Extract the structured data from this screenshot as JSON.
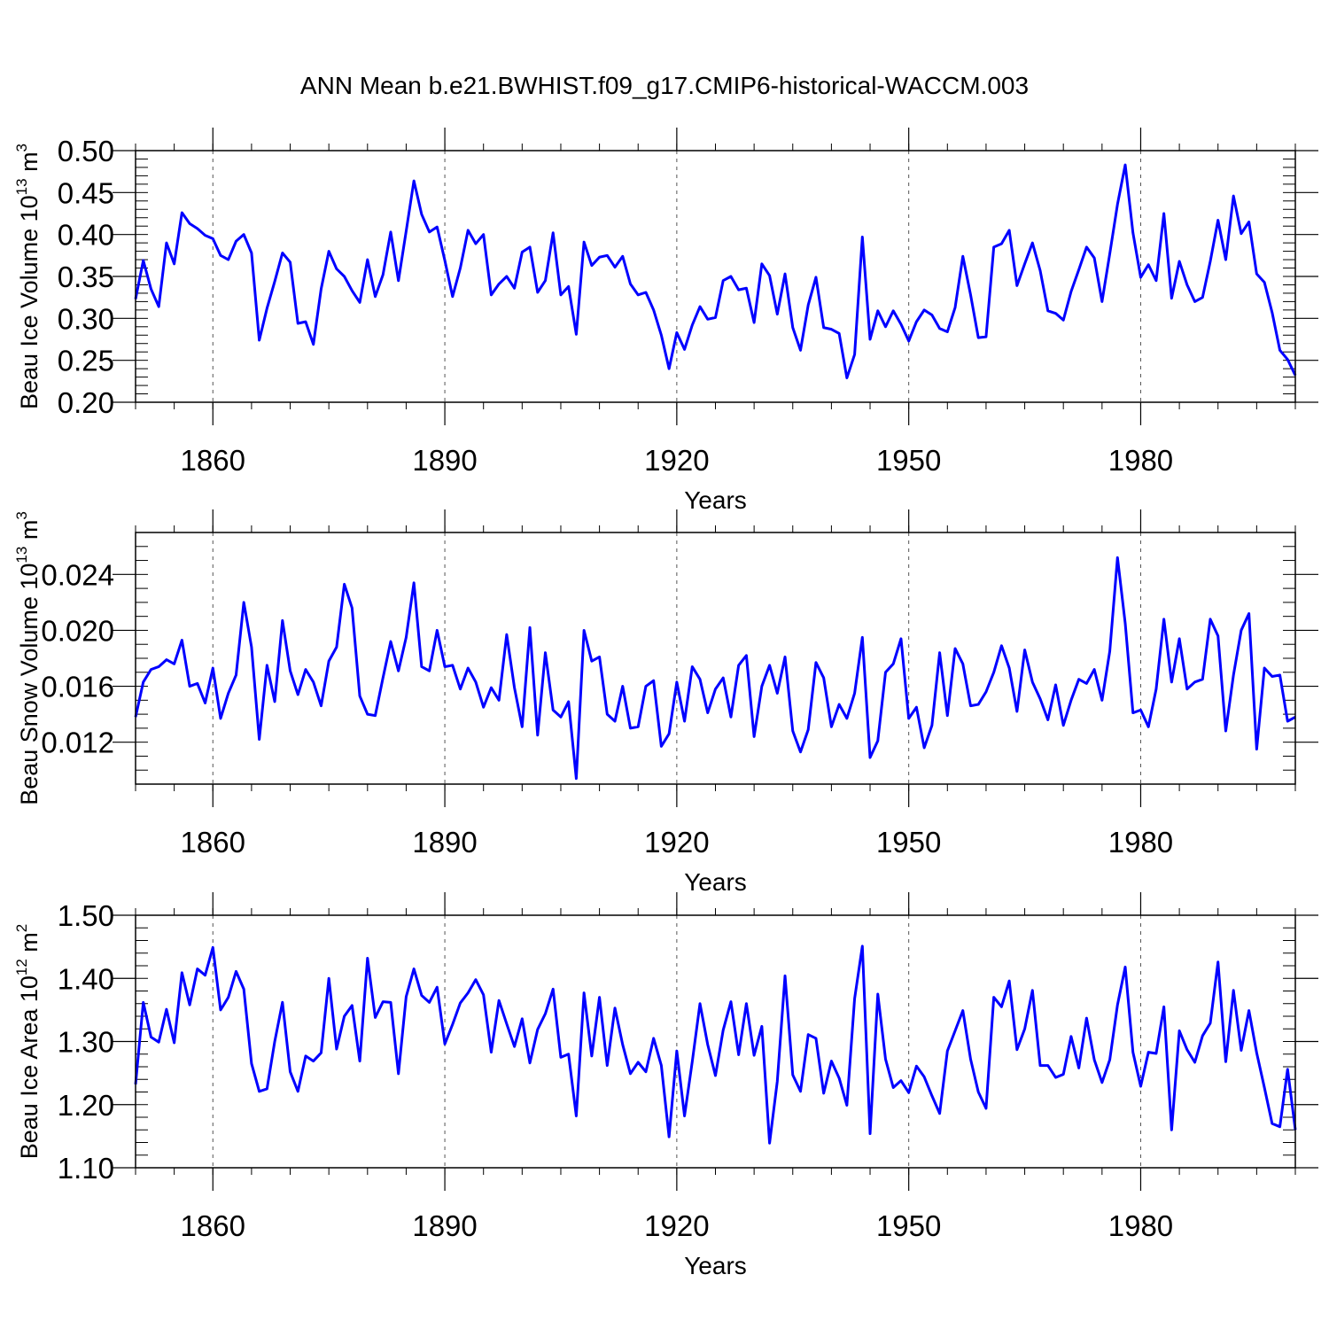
{
  "title": "ANN Mean b.e21.BWHIST.f09_g17.CMIP6-historical-WACCM.003",
  "colors": {
    "line": "#0000ff",
    "axis": "#000000",
    "grid": "#555555"
  },
  "chart_data": [
    {
      "type": "line",
      "name": "ice-volume",
      "ylabel_main": "Beau Ice Volume 10",
      "ylabel_exp": "13",
      "ylabel_unit": " m",
      "ylabel_unit_exp": "3",
      "xlabel": "Years",
      "xlim": [
        1850,
        2000
      ],
      "ylim": [
        0.2,
        0.5
      ],
      "yticks": [
        0.2,
        0.25,
        0.3,
        0.35,
        0.4,
        0.45,
        0.5
      ],
      "ytick_labels": [
        "0.20",
        "0.25",
        "0.30",
        "0.35",
        "0.40",
        "0.45",
        "0.50"
      ],
      "yminor_step": 0.01,
      "xticks": [
        1860,
        1890,
        1920,
        1950,
        1980
      ],
      "xtick_labels": [
        "1860",
        "1890",
        "1920",
        "1950",
        "1980"
      ],
      "x_start": 1850,
      "values": [
        0.323,
        0.369,
        0.335,
        0.314,
        0.39,
        0.365,
        0.426,
        0.413,
        0.407,
        0.399,
        0.395,
        0.375,
        0.37,
        0.392,
        0.4,
        0.378,
        0.274,
        0.312,
        0.344,
        0.378,
        0.367,
        0.294,
        0.296,
        0.269,
        0.335,
        0.38,
        0.359,
        0.35,
        0.333,
        0.319,
        0.37,
        0.326,
        0.352,
        0.403,
        0.345,
        0.404,
        0.464,
        0.424,
        0.403,
        0.409,
        0.369,
        0.326,
        0.36,
        0.405,
        0.389,
        0.4,
        0.328,
        0.341,
        0.35,
        0.336,
        0.379,
        0.385,
        0.331,
        0.345,
        0.402,
        0.328,
        0.338,
        0.281,
        0.391,
        0.363,
        0.373,
        0.375,
        0.361,
        0.374,
        0.341,
        0.328,
        0.331,
        0.31,
        0.28,
        0.24,
        0.283,
        0.263,
        0.292,
        0.314,
        0.299,
        0.301,
        0.345,
        0.35,
        0.334,
        0.336,
        0.295,
        0.365,
        0.351,
        0.305,
        0.353,
        0.289,
        0.262,
        0.316,
        0.349,
        0.289,
        0.287,
        0.282,
        0.229,
        0.257,
        0.397,
        0.275,
        0.309,
        0.29,
        0.309,
        0.293,
        0.273,
        0.296,
        0.31,
        0.304,
        0.288,
        0.284,
        0.313,
        0.374,
        0.328,
        0.277,
        0.278,
        0.385,
        0.389,
        0.405,
        0.339,
        0.365,
        0.39,
        0.357,
        0.309,
        0.306,
        0.298,
        0.332,
        0.358,
        0.385,
        0.372,
        0.32,
        0.377,
        0.436,
        0.483,
        0.402,
        0.349,
        0.364,
        0.345,
        0.425,
        0.324,
        0.368,
        0.34,
        0.32,
        0.325,
        0.368,
        0.417,
        0.37,
        0.446,
        0.401,
        0.415,
        0.353,
        0.343,
        0.307,
        0.262,
        0.251,
        0.232
      ]
    },
    {
      "type": "line",
      "name": "snow-volume",
      "ylabel_main": "Beau Snow Volume 10",
      "ylabel_exp": "13",
      "ylabel_unit": " m",
      "ylabel_unit_exp": "3",
      "xlabel": "Years",
      "xlim": [
        1850,
        2000
      ],
      "ylim": [
        0.009,
        0.027
      ],
      "yticks": [
        0.012,
        0.016,
        0.02,
        0.024
      ],
      "ytick_labels": [
        "0.012",
        "0.016",
        "0.020",
        "0.024"
      ],
      "yminor_step": 0.001,
      "xticks": [
        1860,
        1890,
        1920,
        1950,
        1980
      ],
      "xtick_labels": [
        "1860",
        "1890",
        "1920",
        "1950",
        "1980"
      ],
      "x_start": 1850,
      "values": [
        0.0138,
        0.0163,
        0.0172,
        0.0174,
        0.0179,
        0.0176,
        0.0193,
        0.016,
        0.0162,
        0.0148,
        0.0173,
        0.0137,
        0.0155,
        0.0168,
        0.022,
        0.0188,
        0.0122,
        0.0175,
        0.0149,
        0.0207,
        0.0171,
        0.0154,
        0.0172,
        0.0163,
        0.0146,
        0.0178,
        0.0188,
        0.0233,
        0.0216,
        0.0153,
        0.014,
        0.0139,
        0.0166,
        0.0192,
        0.0171,
        0.0195,
        0.0234,
        0.0174,
        0.0171,
        0.02,
        0.0174,
        0.0175,
        0.0158,
        0.0173,
        0.0163,
        0.0145,
        0.0159,
        0.015,
        0.0197,
        0.0159,
        0.0131,
        0.0202,
        0.0125,
        0.0184,
        0.0143,
        0.0138,
        0.0149,
        0.0094,
        0.02,
        0.0178,
        0.0181,
        0.014,
        0.0135,
        0.016,
        0.013,
        0.0131,
        0.016,
        0.0164,
        0.0117,
        0.0126,
        0.0163,
        0.0135,
        0.0174,
        0.0165,
        0.0141,
        0.0158,
        0.0166,
        0.0138,
        0.0175,
        0.0182,
        0.0124,
        0.016,
        0.0175,
        0.0155,
        0.0181,
        0.0128,
        0.0113,
        0.0129,
        0.0177,
        0.0166,
        0.0131,
        0.0147,
        0.0137,
        0.0155,
        0.0195,
        0.0109,
        0.0121,
        0.017,
        0.0176,
        0.0194,
        0.0137,
        0.0145,
        0.0116,
        0.0132,
        0.0184,
        0.0139,
        0.0187,
        0.0176,
        0.0146,
        0.0147,
        0.0156,
        0.017,
        0.0189,
        0.0173,
        0.0142,
        0.0186,
        0.0163,
        0.0151,
        0.0136,
        0.0161,
        0.0132,
        0.015,
        0.0165,
        0.0162,
        0.0172,
        0.015,
        0.0185,
        0.0252,
        0.0205,
        0.0141,
        0.0143,
        0.0131,
        0.0158,
        0.0208,
        0.0163,
        0.0194,
        0.0158,
        0.0163,
        0.0165,
        0.0208,
        0.0196,
        0.0128,
        0.0168,
        0.02,
        0.0212,
        0.0115,
        0.0173,
        0.0167,
        0.0168,
        0.0135,
        0.0138
      ]
    },
    {
      "type": "line",
      "name": "ice-area",
      "ylabel_main": "Beau Ice Area 10",
      "ylabel_exp": "12",
      "ylabel_unit": " m",
      "ylabel_unit_exp": "2",
      "xlabel": "Years",
      "xlim": [
        1850,
        2000
      ],
      "ylim": [
        1.1,
        1.5
      ],
      "yticks": [
        1.1,
        1.2,
        1.3,
        1.4,
        1.5
      ],
      "ytick_labels": [
        "1.10",
        "1.20",
        "1.30",
        "1.40",
        "1.50"
      ],
      "yminor_step": 0.02,
      "xticks": [
        1860,
        1890,
        1920,
        1950,
        1980
      ],
      "xtick_labels": [
        "1860",
        "1890",
        "1920",
        "1950",
        "1980"
      ],
      "x_start": 1850,
      "values": [
        1.232,
        1.362,
        1.307,
        1.299,
        1.351,
        1.298,
        1.409,
        1.358,
        1.415,
        1.405,
        1.449,
        1.35,
        1.37,
        1.411,
        1.383,
        1.265,
        1.221,
        1.225,
        1.3,
        1.362,
        1.252,
        1.221,
        1.277,
        1.269,
        1.282,
        1.4,
        1.288,
        1.34,
        1.357,
        1.269,
        1.432,
        1.338,
        1.363,
        1.362,
        1.249,
        1.371,
        1.415,
        1.373,
        1.362,
        1.386,
        1.296,
        1.327,
        1.361,
        1.377,
        1.398,
        1.374,
        1.283,
        1.365,
        1.328,
        1.292,
        1.336,
        1.266,
        1.319,
        1.344,
        1.383,
        1.275,
        1.28,
        1.182,
        1.377,
        1.277,
        1.37,
        1.262,
        1.353,
        1.295,
        1.249,
        1.267,
        1.252,
        1.305,
        1.262,
        1.149,
        1.285,
        1.182,
        1.268,
        1.36,
        1.295,
        1.246,
        1.318,
        1.363,
        1.279,
        1.36,
        1.278,
        1.324,
        1.139,
        1.237,
        1.404,
        1.247,
        1.221,
        1.311,
        1.305,
        1.218,
        1.269,
        1.242,
        1.199,
        1.368,
        1.451,
        1.154,
        1.375,
        1.272,
        1.227,
        1.238,
        1.219,
        1.261,
        1.244,
        1.214,
        1.186,
        1.285,
        1.317,
        1.349,
        1.272,
        1.22,
        1.194,
        1.37,
        1.355,
        1.396,
        1.287,
        1.32,
        1.381,
        1.262,
        1.262,
        1.243,
        1.248,
        1.308,
        1.258,
        1.337,
        1.271,
        1.235,
        1.271,
        1.358,
        1.418,
        1.283,
        1.229,
        1.283,
        1.281,
        1.355,
        1.16,
        1.317,
        1.287,
        1.267,
        1.309,
        1.329,
        1.426,
        1.268,
        1.381,
        1.286,
        1.349,
        1.282,
        1.227,
        1.17,
        1.165,
        1.256,
        1.16
      ]
    }
  ]
}
